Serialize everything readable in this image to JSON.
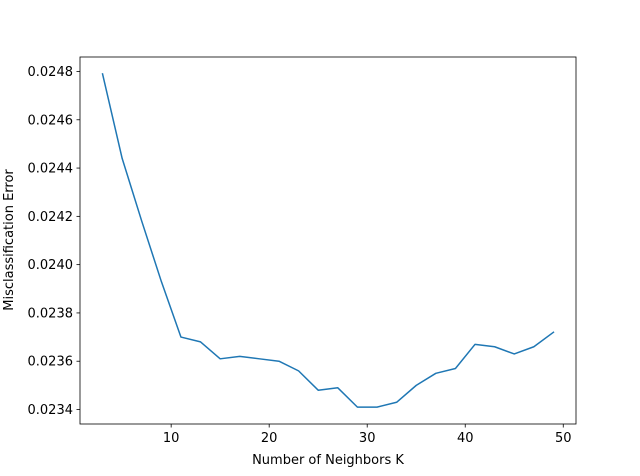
{
  "chart_data": {
    "type": "line",
    "title": "",
    "xlabel": "Number of Neighbors K",
    "ylabel": "Misclassification Error",
    "xlim": [
      0.7,
      51.3
    ],
    "ylim": [
      0.02334,
      0.02486
    ],
    "xticks": [
      10,
      20,
      30,
      40,
      50
    ],
    "yticks": [
      0.0234,
      0.0236,
      0.0238,
      0.024,
      0.0242,
      0.0244,
      0.0246,
      0.0248
    ],
    "ytick_labels": [
      "0.0234",
      "0.0236",
      "0.0238",
      "0.0240",
      "0.0242",
      "0.0244",
      "0.0246",
      "0.0248"
    ],
    "grid": false,
    "series": [
      {
        "color": "#1f77b4",
        "x": [
          3,
          5,
          7,
          9,
          11,
          13,
          15,
          17,
          19,
          21,
          23,
          25,
          27,
          29,
          31,
          33,
          35,
          37,
          39,
          41,
          43,
          45,
          47,
          49
        ],
        "y": [
          0.02479,
          0.02444,
          0.02418,
          0.02393,
          0.0237,
          0.02368,
          0.02361,
          0.02362,
          0.02361,
          0.0236,
          0.02356,
          0.02348,
          0.02349,
          0.02341,
          0.02341,
          0.02343,
          0.0235,
          0.02355,
          0.02357,
          0.02367,
          0.02366,
          0.02363,
          0.02366,
          0.02372
        ]
      }
    ]
  }
}
